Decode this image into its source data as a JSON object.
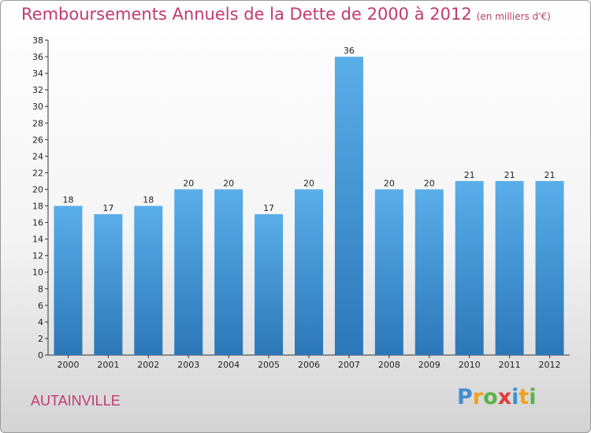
{
  "title": "Remboursements Annuels de la Dette de 2000 à 2012",
  "unit": "(en milliers d'€)",
  "commune": "AUTAINVILLE",
  "logo": {
    "text": "Proxiti",
    "letters": [
      {
        "ch": "P",
        "color": "#3f8fd2"
      },
      {
        "ch": "r",
        "color": "#f0a020"
      },
      {
        "ch": "o",
        "color": "#5ab24a"
      },
      {
        "ch": "x",
        "color": "#e03a3a"
      },
      {
        "ch": "i",
        "color": "#3f8fd2"
      },
      {
        "ch": "t",
        "color": "#f0a020"
      },
      {
        "ch": "i",
        "color": "#5ab24a"
      }
    ]
  },
  "colors": {
    "title": "#c23a6e",
    "bar_top": "#5aaeea",
    "bar_bottom": "#2c77b8"
  },
  "chart_data": {
    "type": "bar",
    "title": "Remboursements Annuels de la Dette de 2000 à 2012",
    "categories": [
      "2000",
      "2001",
      "2002",
      "2003",
      "2004",
      "2005",
      "2006",
      "2007",
      "2008",
      "2009",
      "2010",
      "2011",
      "2012"
    ],
    "values": [
      18,
      17,
      18,
      20,
      20,
      17,
      20,
      36,
      20,
      20,
      21,
      21,
      21
    ],
    "ylim": [
      0,
      38
    ],
    "yticks": [
      0,
      2,
      4,
      6,
      8,
      10,
      12,
      14,
      16,
      18,
      20,
      22,
      24,
      26,
      28,
      30,
      32,
      34,
      36,
      38
    ],
    "grid": false,
    "xlabel": "",
    "ylabel": ""
  }
}
